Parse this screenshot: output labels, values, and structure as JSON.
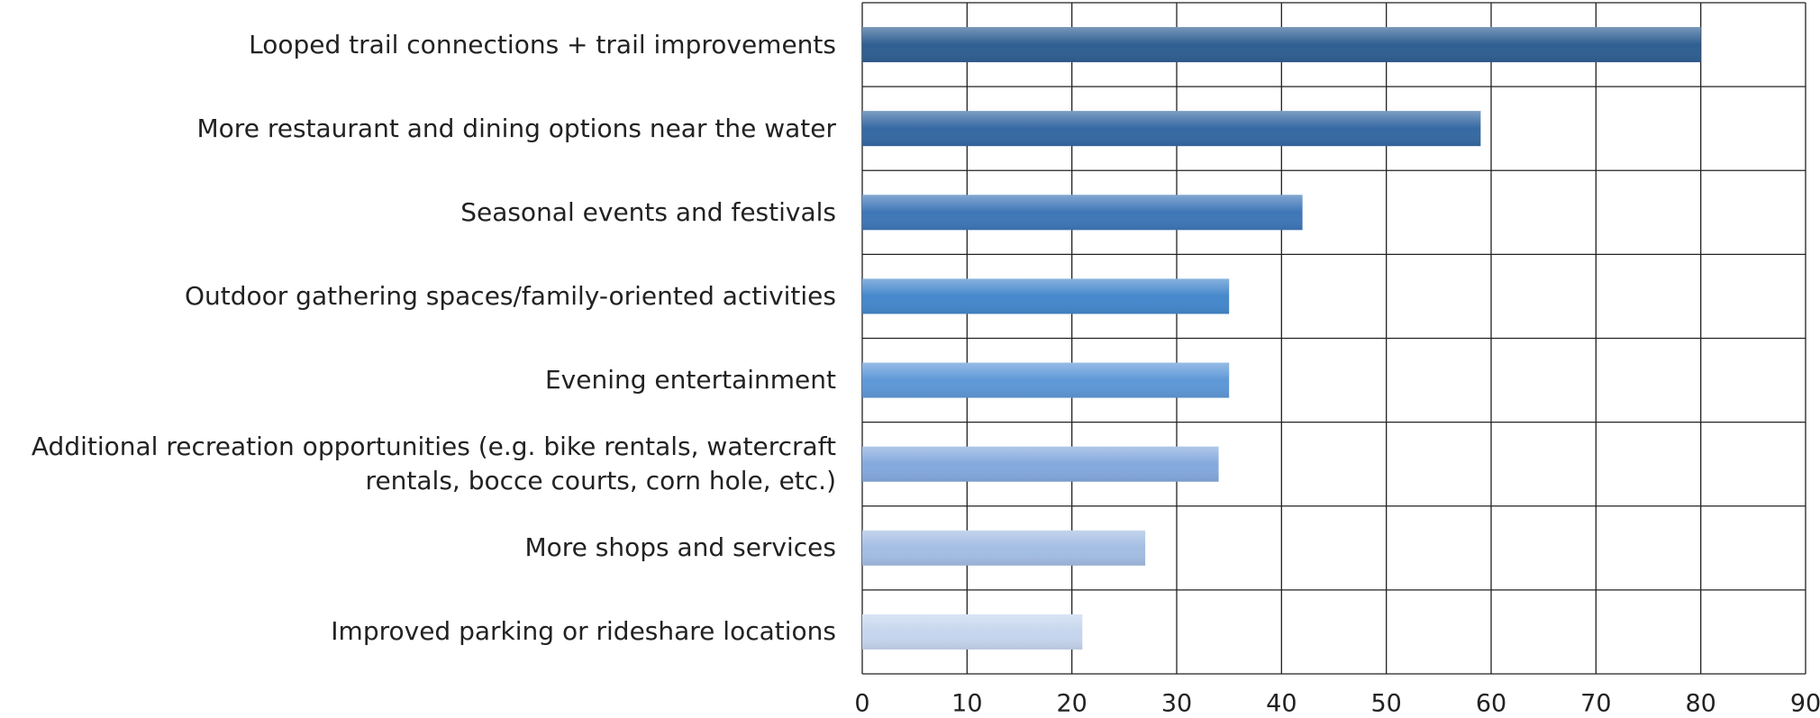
{
  "chart_data": {
    "type": "bar",
    "orientation": "horizontal",
    "categories": [
      "Looped trail connections + trail improvements",
      "More restaurant and dining options near the water",
      "Seasonal events and festivals",
      "Outdoor gathering spaces/family-oriented activities",
      "Evening entertainment",
      "Additional recreation opportunities (e.g. bike rentals, watercraft rentals, bocce courts, corn hole, etc.)",
      "More shops and services",
      "Improved parking or rideshare locations"
    ],
    "values": [
      80,
      59,
      42,
      35,
      35,
      34,
      27,
      21
    ],
    "colors": [
      "#2f5f92",
      "#3669a3",
      "#3f77b8",
      "#4588cc",
      "#5e98d8",
      "#84a9dd",
      "#a3bde3",
      "#c6d6ee"
    ],
    "xlim": [
      0,
      90
    ],
    "xticks": [
      0,
      10,
      20,
      30,
      40,
      50,
      60,
      70,
      80,
      90
    ],
    "grid": true
  }
}
